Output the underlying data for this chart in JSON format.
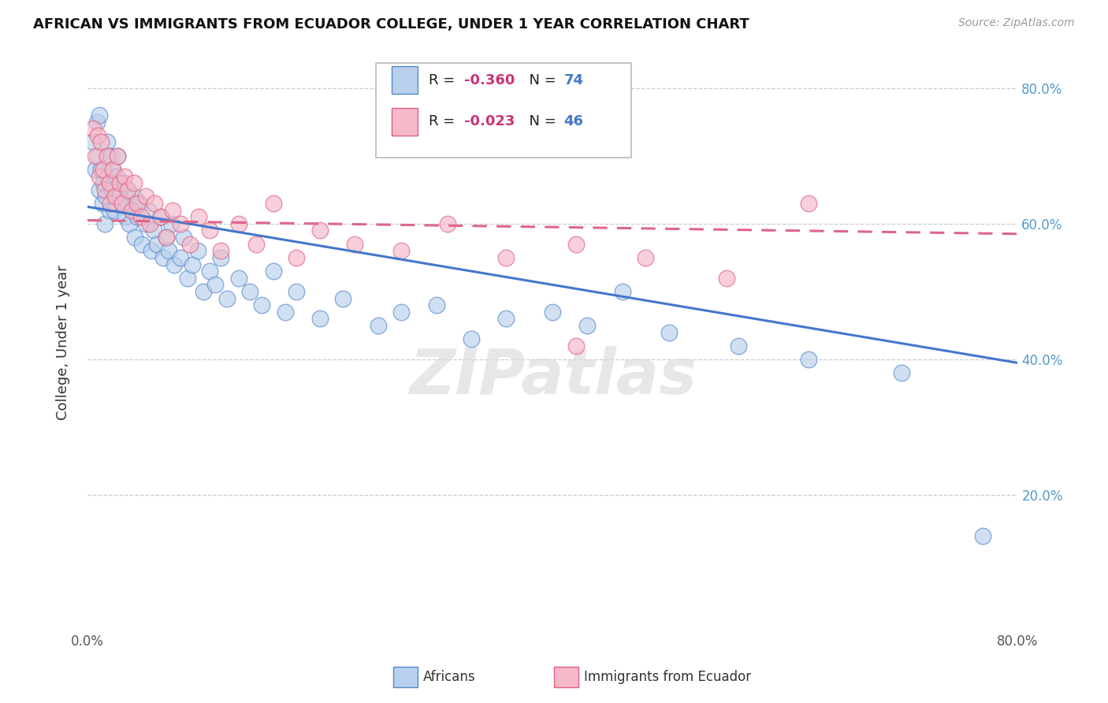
{
  "title": "AFRICAN VS IMMIGRANTS FROM ECUADOR COLLEGE, UNDER 1 YEAR CORRELATION CHART",
  "source": "Source: ZipAtlas.com",
  "ylabel": "College, Under 1 year",
  "xlim": [
    0.0,
    0.8
  ],
  "ylim": [
    0.0,
    0.85
  ],
  "legend_R1": "R = -0.360",
  "legend_N1": "N = 74",
  "legend_R2": "R = -0.023",
  "legend_N2": "N = 46",
  "blue_fill": "#b8d0eb",
  "blue_edge": "#5588cc",
  "pink_fill": "#f5b8c8",
  "pink_edge": "#e06080",
  "blue_line": "#4477cc",
  "pink_line": "#dd6688",
  "watermark": "ZIPatlas",
  "grid_color": "#cccccc",
  "right_tick_color": "#5599cc",
  "africans_x": [
    0.005,
    0.007,
    0.008,
    0.009,
    0.01,
    0.01,
    0.012,
    0.013,
    0.014,
    0.015,
    0.016,
    0.017,
    0.018,
    0.019,
    0.02,
    0.021,
    0.022,
    0.023,
    0.025,
    0.026,
    0.028,
    0.03,
    0.031,
    0.033,
    0.035,
    0.036,
    0.038,
    0.04,
    0.041,
    0.043,
    0.045,
    0.047,
    0.05,
    0.052,
    0.055,
    0.057,
    0.06,
    0.063,
    0.065,
    0.068,
    0.07,
    0.072,
    0.075,
    0.08,
    0.083,
    0.086,
    0.09,
    0.095,
    0.1,
    0.105,
    0.11,
    0.115,
    0.12,
    0.13,
    0.14,
    0.15,
    0.16,
    0.17,
    0.18,
    0.2,
    0.22,
    0.25,
    0.27,
    0.3,
    0.33,
    0.36,
    0.4,
    0.43,
    0.46,
    0.5,
    0.56,
    0.62,
    0.7,
    0.77
  ],
  "africans_y": [
    0.72,
    0.68,
    0.75,
    0.7,
    0.76,
    0.65,
    0.68,
    0.63,
    0.66,
    0.6,
    0.64,
    0.72,
    0.67,
    0.62,
    0.7,
    0.65,
    0.68,
    0.62,
    0.67,
    0.7,
    0.64,
    0.63,
    0.66,
    0.61,
    0.65,
    0.6,
    0.62,
    0.64,
    0.58,
    0.61,
    0.63,
    0.57,
    0.6,
    0.62,
    0.56,
    0.59,
    0.57,
    0.61,
    0.55,
    0.58,
    0.56,
    0.6,
    0.54,
    0.55,
    0.58,
    0.52,
    0.54,
    0.56,
    0.5,
    0.53,
    0.51,
    0.55,
    0.49,
    0.52,
    0.5,
    0.48,
    0.53,
    0.47,
    0.5,
    0.46,
    0.49,
    0.45,
    0.47,
    0.48,
    0.43,
    0.46,
    0.47,
    0.45,
    0.5,
    0.44,
    0.42,
    0.4,
    0.38,
    0.14
  ],
  "ecuador_x": [
    0.005,
    0.007,
    0.009,
    0.01,
    0.012,
    0.014,
    0.015,
    0.017,
    0.019,
    0.02,
    0.022,
    0.024,
    0.026,
    0.028,
    0.03,
    0.032,
    0.035,
    0.038,
    0.04,
    0.043,
    0.046,
    0.05,
    0.054,
    0.058,
    0.063,
    0.068,
    0.073,
    0.08,
    0.088,
    0.096,
    0.105,
    0.115,
    0.13,
    0.145,
    0.16,
    0.18,
    0.2,
    0.23,
    0.27,
    0.31,
    0.36,
    0.42,
    0.48,
    0.55,
    0.62,
    0.42
  ],
  "ecuador_y": [
    0.74,
    0.7,
    0.73,
    0.67,
    0.72,
    0.68,
    0.65,
    0.7,
    0.66,
    0.63,
    0.68,
    0.64,
    0.7,
    0.66,
    0.63,
    0.67,
    0.65,
    0.62,
    0.66,
    0.63,
    0.61,
    0.64,
    0.6,
    0.63,
    0.61,
    0.58,
    0.62,
    0.6,
    0.57,
    0.61,
    0.59,
    0.56,
    0.6,
    0.57,
    0.63,
    0.55,
    0.59,
    0.57,
    0.56,
    0.6,
    0.55,
    0.57,
    0.55,
    0.52,
    0.63,
    0.42
  ],
  "blue_line_x0": 0.0,
  "blue_line_y0": 0.625,
  "blue_line_x1": 0.8,
  "blue_line_y1": 0.395,
  "pink_line_x0": 0.0,
  "pink_line_y0": 0.605,
  "pink_line_x1": 0.8,
  "pink_line_y1": 0.585
}
